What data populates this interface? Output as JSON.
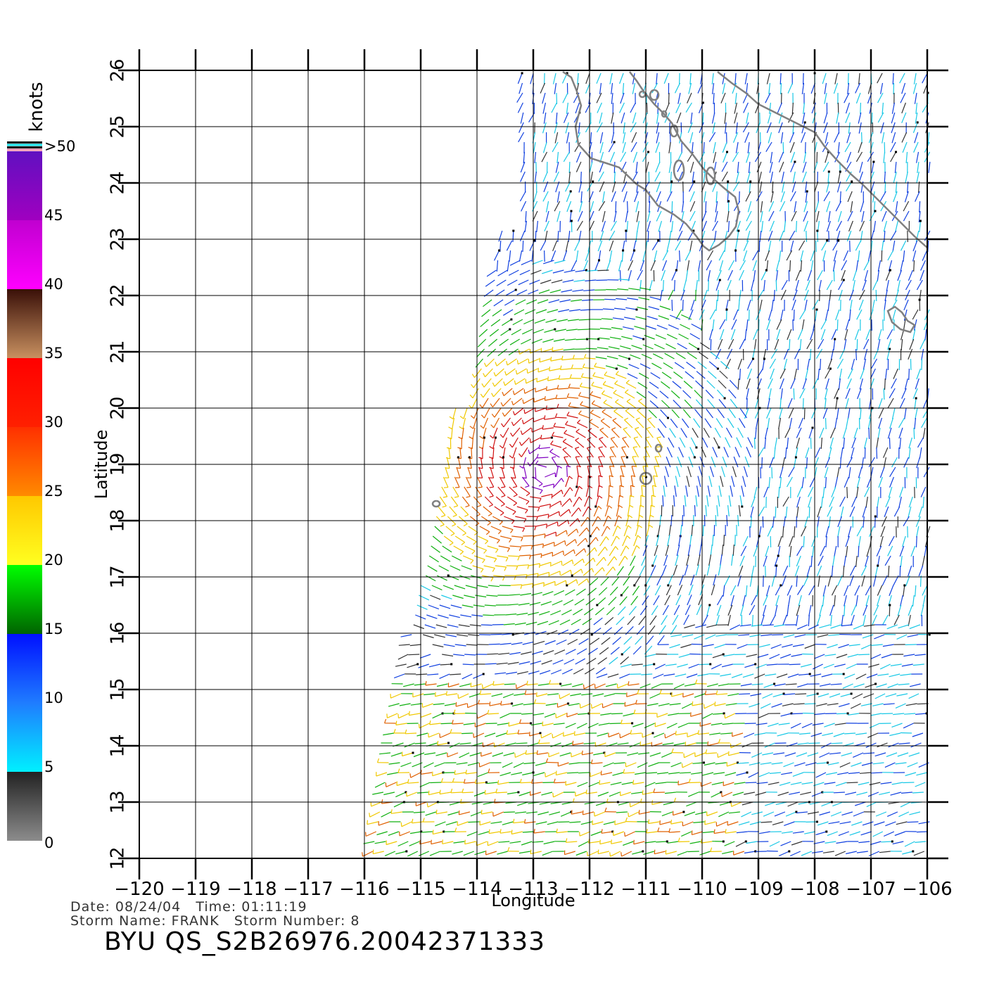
{
  "map": {
    "xlabel": "Longitude",
    "ylabel": "Latitude",
    "lon_range": [
      -120,
      -106
    ],
    "lat_range": [
      12,
      26
    ],
    "lon_ticks": [
      "−120",
      "−119",
      "−118",
      "−117",
      "−116",
      "−115",
      "−114",
      "−113",
      "−112",
      "−111",
      "−110",
      "−109",
      "−108",
      "−107",
      "−106"
    ],
    "lat_ticks": [
      "12",
      "13",
      "14",
      "15",
      "16",
      "17",
      "18",
      "19",
      "20",
      "21",
      "22",
      "23",
      "24",
      "25",
      "26"
    ],
    "grid": true,
    "coastline_color": "#808080",
    "wind_field": {
      "storm_center": {
        "lon": -112.8,
        "lat": 18.9
      },
      "barb_icon": "wind-barb-icon"
    }
  },
  "legend": {
    "unit": "knots",
    "labels": [
      "0",
      "5",
      "10",
      "15",
      "20",
      "25",
      "30",
      "35",
      "40",
      "45",
      ">50"
    ],
    "bands": [
      {
        "from": 0,
        "to": 5,
        "colors": [
          "#8c8c8c",
          "#222222"
        ]
      },
      {
        "from": 5,
        "to": 10,
        "colors": [
          "#00f0ff",
          "#1f7cff"
        ]
      },
      {
        "from": 10,
        "to": 15,
        "colors": [
          "#1f7cff",
          "#0010ff"
        ]
      },
      {
        "from": 15,
        "to": 20,
        "colors": [
          "#006400",
          "#00ff00"
        ]
      },
      {
        "from": 20,
        "to": 25,
        "colors": [
          "#ffff20",
          "#ffc800"
        ]
      },
      {
        "from": 25,
        "to": 30,
        "colors": [
          "#ff8a00",
          "#ff3000"
        ]
      },
      {
        "from": 30,
        "to": 35,
        "colors": [
          "#ff2000",
          "#ff0000"
        ]
      },
      {
        "from": 35,
        "to": 40,
        "colors": [
          "#c89060",
          "#3a1008"
        ]
      },
      {
        "from": 40,
        "to": 45,
        "colors": [
          "#ff00ff",
          "#c000d0"
        ]
      },
      {
        "from": 45,
        "to": 50,
        "colors": [
          "#a000c0",
          "#6010c0"
        ]
      }
    ]
  },
  "footer": {
    "date_label": "Date: 08/24/04",
    "time_label": "Time: 01:11:19",
    "storm_name_label": "Storm Name: FRANK",
    "storm_number_label": "Storm Number: 8",
    "product_title": "BYU QS_S2B26976.20042371333"
  },
  "colors": {
    "calm": "#333333",
    "light": "#19c8e6",
    "moderate": "#1040e0",
    "fresh": "#10b010",
    "strong": "#f0c800",
    "gale": "#e06000",
    "storm": "#d01010",
    "violent": "#8000c0"
  }
}
